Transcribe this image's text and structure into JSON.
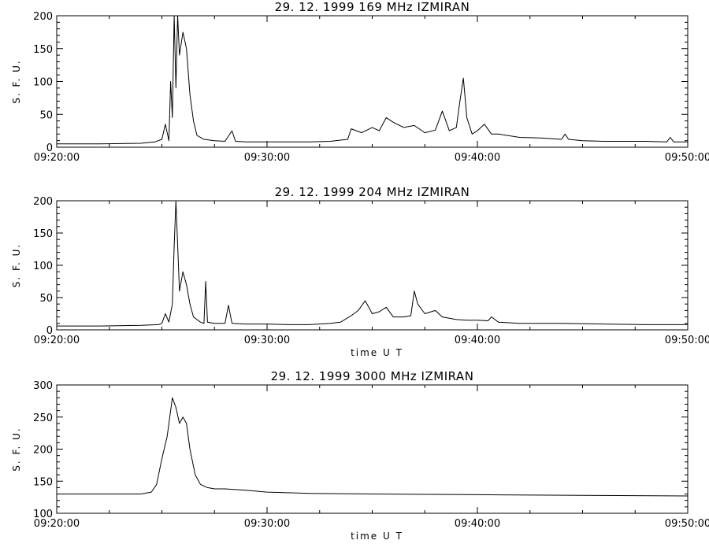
{
  "chart_data": [
    {
      "type": "line",
      "title": "29.  12.  1999    169 MHz    IZMIRAN",
      "ylabel": "S. F. U.",
      "xlabel": "",
      "xlim": [
        "09:20:00",
        "09:50:00"
      ],
      "ylim": [
        0,
        200
      ],
      "x_ticks": [
        "09:20:00",
        "09:30:00",
        "09:40:00",
        "09:50:00"
      ],
      "y_ticks": [
        0,
        50,
        100,
        150,
        200
      ],
      "grid": false,
      "series": [
        {
          "x": [
            "09:20:00",
            "09:22:00",
            "09:24:00",
            "09:24:40",
            "09:25:00",
            "09:25:10",
            "09:25:20",
            "09:25:25",
            "09:25:30",
            "09:25:35",
            "09:25:40",
            "09:25:45",
            "09:25:50",
            "09:26:00",
            "09:26:10",
            "09:26:20",
            "09:26:30",
            "09:26:40",
            "09:27:00",
            "09:27:30",
            "09:28:00",
            "09:28:20",
            "09:28:30",
            "09:29:00",
            "09:30:00",
            "09:31:00",
            "09:32:00",
            "09:33:00",
            "09:33:50",
            "09:34:00",
            "09:34:30",
            "09:35:00",
            "09:35:20",
            "09:35:40",
            "09:36:00",
            "09:36:30",
            "09:37:00",
            "09:37:30",
            "09:38:00",
            "09:38:20",
            "09:38:40",
            "09:39:00",
            "09:39:10",
            "09:39:20",
            "09:39:30",
            "09:39:45",
            "09:40:00",
            "09:40:20",
            "09:40:40",
            "09:41:00",
            "09:42:00",
            "09:43:00",
            "09:44:00",
            "09:44:10",
            "09:44:20",
            "09:45:00",
            "09:46:00",
            "09:48:00",
            "09:49:00",
            "09:49:10",
            "09:49:20",
            "09:50:00"
          ],
          "y": [
            5,
            5,
            6,
            8,
            12,
            35,
            10,
            100,
            45,
            200,
            90,
            200,
            140,
            175,
            150,
            80,
            40,
            18,
            12,
            10,
            9,
            25,
            9,
            8,
            8,
            8,
            8,
            9,
            12,
            28,
            22,
            30,
            25,
            45,
            38,
            30,
            33,
            22,
            26,
            55,
            25,
            30,
            70,
            105,
            45,
            20,
            25,
            35,
            20,
            20,
            15,
            14,
            12,
            20,
            12,
            10,
            9,
            9,
            8,
            15,
            8,
            8
          ]
        }
      ]
    },
    {
      "type": "line",
      "title": "29.  12.  1999    204 MHz    IZMIRAN",
      "ylabel": "S. F. U.",
      "xlabel": "time   U T",
      "xlim": [
        "09:20:00",
        "09:50:00"
      ],
      "ylim": [
        0,
        200
      ],
      "x_ticks": [
        "09:20:00",
        "09:30:00",
        "09:40:00",
        "09:50:00"
      ],
      "y_ticks": [
        0,
        50,
        100,
        150,
        200
      ],
      "grid": false,
      "series": [
        {
          "x": [
            "09:20:00",
            "09:22:00",
            "09:24:00",
            "09:24:50",
            "09:25:00",
            "09:25:10",
            "09:25:20",
            "09:25:30",
            "09:25:35",
            "09:25:40",
            "09:25:50",
            "09:26:00",
            "09:26:10",
            "09:26:20",
            "09:26:30",
            "09:26:50",
            "09:27:00",
            "09:27:05",
            "09:27:10",
            "09:27:30",
            "09:28:00",
            "09:28:10",
            "09:28:20",
            "09:29:00",
            "09:30:00",
            "09:31:00",
            "09:32:00",
            "09:33:00",
            "09:33:30",
            "09:34:00",
            "09:34:20",
            "09:34:40",
            "09:34:50",
            "09:35:00",
            "09:35:20",
            "09:35:40",
            "09:36:00",
            "09:36:30",
            "09:36:50",
            "09:37:00",
            "09:37:10",
            "09:37:30",
            "09:38:00",
            "09:38:20",
            "09:38:40",
            "09:39:00",
            "09:39:30",
            "09:40:00",
            "09:40:30",
            "09:40:40",
            "09:41:00",
            "09:42:00",
            "09:44:00",
            "09:46:00",
            "09:48:00",
            "09:50:00"
          ],
          "y": [
            6,
            6,
            7,
            8,
            10,
            25,
            12,
            40,
            130,
            200,
            60,
            90,
            70,
            40,
            20,
            12,
            10,
            75,
            12,
            10,
            10,
            38,
            10,
            9,
            9,
            8,
            8,
            10,
            12,
            22,
            30,
            45,
            35,
            25,
            28,
            35,
            20,
            20,
            22,
            60,
            40,
            25,
            30,
            20,
            18,
            16,
            15,
            15,
            14,
            20,
            12,
            10,
            10,
            9,
            8,
            8
          ]
        }
      ]
    },
    {
      "type": "line",
      "title": "29.  12.  1999    3000 MHz    IZMIRAN",
      "ylabel": "S. F. U.",
      "xlabel": "time   U T",
      "xlim": [
        "09:20:00",
        "09:50:00"
      ],
      "ylim": [
        100,
        300
      ],
      "x_ticks": [
        "09:20:00",
        "09:30:00",
        "09:40:00",
        "09:50:00"
      ],
      "y_ticks": [
        100,
        150,
        200,
        250,
        300
      ],
      "grid": false,
      "series": [
        {
          "x": [
            "09:20:00",
            "09:22:00",
            "09:24:00",
            "09:24:30",
            "09:24:45",
            "09:25:00",
            "09:25:15",
            "09:25:30",
            "09:25:40",
            "09:25:50",
            "09:26:00",
            "09:26:10",
            "09:26:20",
            "09:26:35",
            "09:26:50",
            "09:27:10",
            "09:27:30",
            "09:28:00",
            "09:29:00",
            "09:30:00",
            "09:32:00",
            "09:35:00",
            "09:40:00",
            "09:45:00",
            "09:50:00"
          ],
          "y": [
            130,
            130,
            130,
            133,
            145,
            185,
            220,
            280,
            265,
            240,
            250,
            240,
            200,
            160,
            145,
            140,
            138,
            138,
            136,
            133,
            131,
            130,
            129,
            128,
            127
          ]
        }
      ]
    }
  ]
}
